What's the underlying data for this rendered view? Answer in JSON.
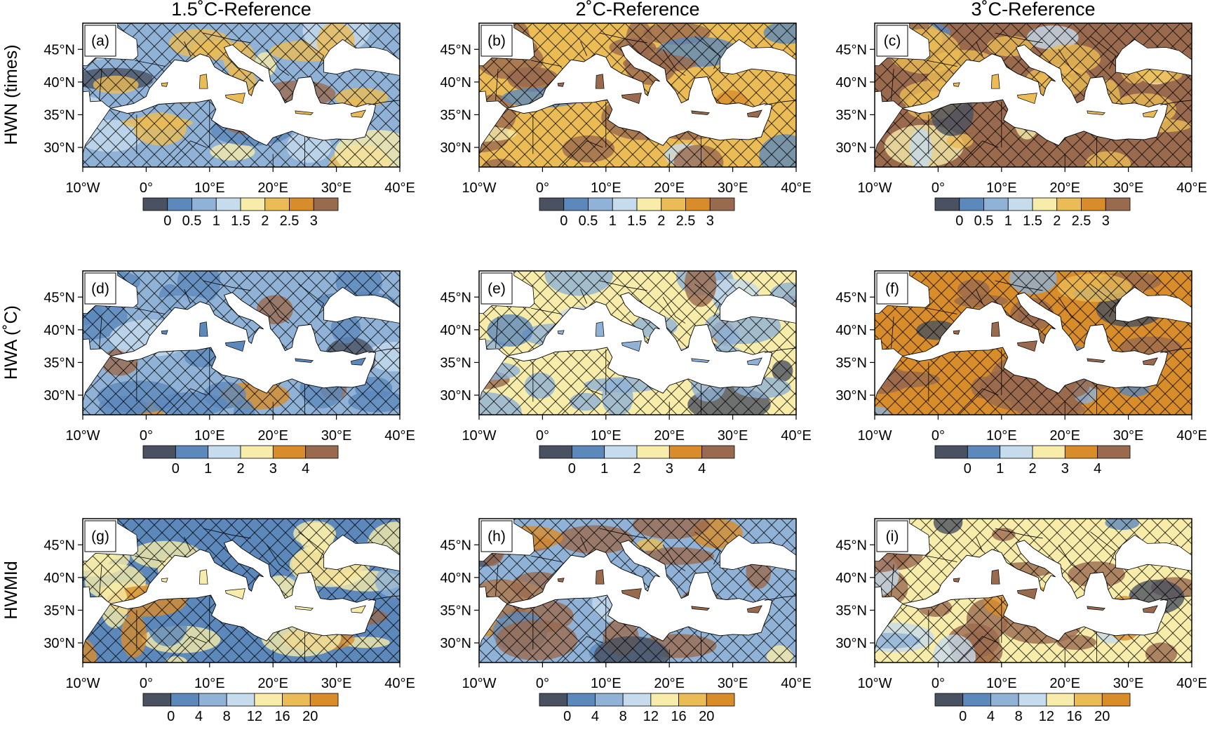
{
  "columns": [
    "1.5˚C-Reference",
    "2˚C-Reference",
    "3˚C-Reference"
  ],
  "rows": [
    {
      "label": "HWN (times)",
      "colorbar_labels": [
        "0",
        "0.5",
        "1",
        "1.5",
        "2",
        "2.5",
        "3"
      ]
    },
    {
      "label": "HWA (˚C)",
      "colorbar_labels": [
        "0",
        "1",
        "2",
        "3",
        "4"
      ]
    },
    {
      "label": "HWMId",
      "colorbar_labels": [
        "0",
        "4",
        "8",
        "12",
        "16",
        "20"
      ]
    }
  ],
  "panel_labels": [
    "(a)",
    "(b)",
    "(c)",
    "(d)",
    "(e)",
    "(f)",
    "(g)",
    "(h)",
    "(i)"
  ],
  "lon_ticks": [
    "10°W",
    "0°",
    "10°E",
    "20°E",
    "30°E",
    "40°E"
  ],
  "lat_ticks": [
    "45°N",
    "40°N",
    "35°N",
    "30°N"
  ],
  "colors": {
    "palette": [
      "#4a5160",
      "#5c88bb",
      "#8fb2d6",
      "#c6dbec",
      "#f7ecaa",
      "#ebbc55",
      "#d88c2a",
      "#9a6a4f"
    ],
    "sea": "#ffffff",
    "hatch": "#000000"
  },
  "panel_fill": [
    {
      "base": "#8fb2d6",
      "warm": "#ebbc55"
    },
    {
      "base": "#ebbc55",
      "warm": "#9a6a4f"
    },
    {
      "base": "#9a6a4f",
      "warm": "#ebbc55"
    },
    {
      "base": "#8fb2d6",
      "warm": "#5c88bb"
    },
    {
      "base": "#f7ecaa",
      "warm": "#8fb2d6"
    },
    {
      "base": "#d88c2a",
      "warm": "#9a6a4f"
    },
    {
      "base": "#5c88bb",
      "warm": "#f7ecaa"
    },
    {
      "base": "#8fb2d6",
      "warm": "#9a6a4f"
    },
    {
      "base": "#f7ecaa",
      "warm": "#9a6a4f"
    }
  ]
}
